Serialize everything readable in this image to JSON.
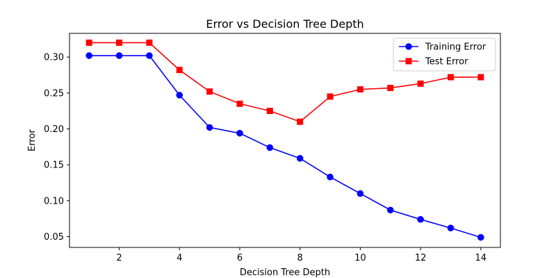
{
  "chart_data": {
    "type": "line",
    "title": "Error vs Decision Tree Depth",
    "xlabel": "Decision Tree Depth",
    "ylabel": "Error",
    "xlim": [
      0.35,
      14.65
    ],
    "ylim": [
      0.035,
      0.333
    ],
    "xticks": [
      2,
      4,
      6,
      8,
      10,
      12,
      14
    ],
    "yticks": [
      0.05,
      0.1,
      0.15,
      0.2,
      0.25,
      0.3
    ],
    "ytick_labels": [
      "0.05",
      "0.10",
      "0.15",
      "0.20",
      "0.25",
      "0.30"
    ],
    "grid": false,
    "legend": "top-right",
    "x": [
      1,
      2,
      3,
      4,
      5,
      6,
      7,
      8,
      9,
      10,
      11,
      12,
      13,
      14
    ],
    "series": [
      {
        "name": "Training Error",
        "color": "#0000ff",
        "marker": "circle",
        "values": [
          0.302,
          0.302,
          0.302,
          0.247,
          0.202,
          0.194,
          0.174,
          0.159,
          0.133,
          0.11,
          0.087,
          0.074,
          0.062,
          0.049
        ]
      },
      {
        "name": "Test Error",
        "color": "#ff0000",
        "marker": "square",
        "values": [
          0.32,
          0.32,
          0.32,
          0.282,
          0.252,
          0.235,
          0.225,
          0.21,
          0.245,
          0.255,
          0.257,
          0.263,
          0.272,
          0.272
        ]
      }
    ]
  }
}
